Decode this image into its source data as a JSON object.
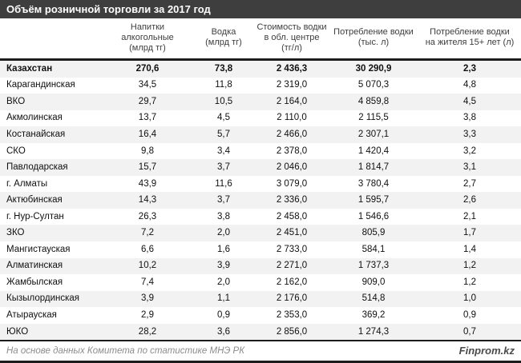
{
  "title": "Объём розничной торговли за 2017 год",
  "chart_data": {
    "type": "table",
    "title": "Объём розничной торговли за 2017 год",
    "region_column_header": "",
    "columns": [
      [
        "Напитки алкогольные",
        "(млрд тг)"
      ],
      [
        "Водка",
        "(млрд тг)"
      ],
      [
        "Стоимость водки",
        "в обл. центре",
        "(тг/л)"
      ],
      [
        "Потребление водки",
        "(тыс. л)"
      ],
      [
        "Потребление водки",
        "на жителя 15+ лет (л)"
      ]
    ],
    "rows": [
      {
        "region": "Казахстан",
        "values": [
          "270,6",
          "73,8",
          "2 436,3",
          "30 290,9",
          "2,3"
        ],
        "bold": true
      },
      {
        "region": "Карагандинская",
        "values": [
          "34,5",
          "11,8",
          "2 319,0",
          "5 070,3",
          "4,8"
        ]
      },
      {
        "region": "ВКО",
        "values": [
          "29,7",
          "10,5",
          "2 164,0",
          "4 859,8",
          "4,5"
        ]
      },
      {
        "region": "Акмолинская",
        "values": [
          "13,7",
          "4,5",
          "2 110,0",
          "2 115,5",
          "3,8"
        ]
      },
      {
        "region": "Костанайская",
        "values": [
          "16,4",
          "5,7",
          "2 466,0",
          "2 307,1",
          "3,3"
        ]
      },
      {
        "region": "СКО",
        "values": [
          "9,8",
          "3,4",
          "2 378,0",
          "1 420,4",
          "3,2"
        ]
      },
      {
        "region": "Павлодарская",
        "values": [
          "15,7",
          "3,7",
          "2 046,0",
          "1 814,7",
          "3,1"
        ]
      },
      {
        "region": "г. Алматы",
        "values": [
          "43,9",
          "11,6",
          "3 079,0",
          "3 780,4",
          "2,7"
        ]
      },
      {
        "region": "Актюбинская",
        "values": [
          "14,3",
          "3,7",
          "2 336,0",
          "1 595,7",
          "2,6"
        ]
      },
      {
        "region": "г. Нур-Султан",
        "values": [
          "26,3",
          "3,8",
          "2 458,0",
          "1 546,6",
          "2,1"
        ]
      },
      {
        "region": "ЗКО",
        "values": [
          "7,2",
          "2,0",
          "2 451,0",
          "805,9",
          "1,7"
        ]
      },
      {
        "region": "Мангистауская",
        "values": [
          "6,6",
          "1,6",
          "2 733,0",
          "584,1",
          "1,4"
        ]
      },
      {
        "region": "Алматинская",
        "values": [
          "10,2",
          "3,9",
          "2 271,0",
          "1 737,3",
          "1,2"
        ]
      },
      {
        "region": "Жамбылская",
        "values": [
          "7,4",
          "2,0",
          "2 162,0",
          "909,0",
          "1,2"
        ]
      },
      {
        "region": "Кызылординская",
        "values": [
          "3,9",
          "1,1",
          "2 176,0",
          "514,8",
          "1,0"
        ]
      },
      {
        "region": "Атырауская",
        "values": [
          "2,9",
          "0,9",
          "2 353,0",
          "369,2",
          "0,9"
        ]
      },
      {
        "region": "ЮКО",
        "values": [
          "28,2",
          "3,6",
          "2 856,0",
          "1 274,3",
          "0,7"
        ]
      }
    ]
  },
  "footer": {
    "source": "На основе данных Комитета по статистике МНЭ РК",
    "brand": "Finprom.kz"
  },
  "colors": {
    "title_bar_bg": "#3e3e3e",
    "title_text": "#ffffff",
    "stripe_row_bg": "#f2f2f2",
    "border_dark": "#1c1c1c",
    "source_text": "#8c8c8c",
    "brand_text": "#4a4a4a"
  }
}
